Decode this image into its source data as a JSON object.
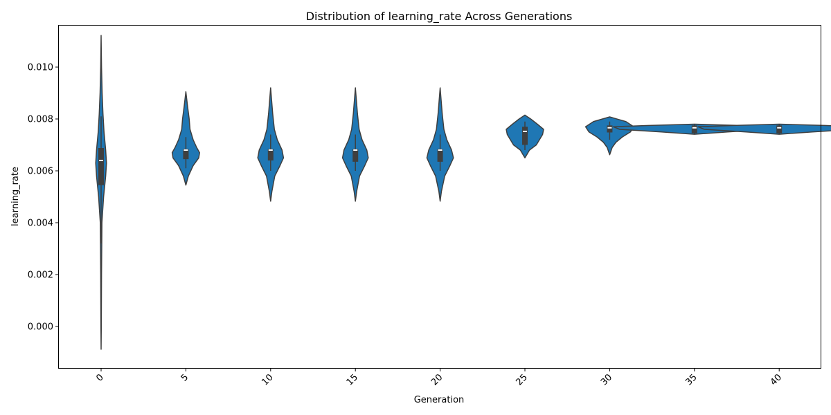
{
  "chart_data": {
    "type": "violin",
    "title": "Distribution of learning_rate Across Generations",
    "xlabel": "Generation",
    "ylabel": "learning_rate",
    "ylim": [
      -0.0016,
      0.0116
    ],
    "yticks": [
      "0.000",
      "0.002",
      "0.004",
      "0.006",
      "0.008",
      "0.010"
    ],
    "ytick_values": [
      0.0,
      0.002,
      0.004,
      0.006,
      0.008,
      0.01
    ],
    "grid": false,
    "colors": {
      "violin_fill": "#1f77b4",
      "violin_edge": "#3f3f3f",
      "box": "#3f3f3f",
      "median": "#ffffff"
    },
    "categories": [
      "0",
      "5",
      "10",
      "15",
      "20",
      "25",
      "30",
      "35",
      "40"
    ],
    "violins": [
      {
        "generation": "0",
        "min": -0.00088,
        "max": 0.01122,
        "q1": 0.00545,
        "median": 0.0064,
        "q3": 0.00688,
        "whisker_low": 0.0032,
        "whisker_high": 0.0081,
        "profile": [
          [
            -0.00088,
            0.0
          ],
          [
            0.0,
            0.01
          ],
          [
            0.002,
            0.02
          ],
          [
            0.004,
            0.04
          ],
          [
            0.005,
            0.12
          ],
          [
            0.0058,
            0.22
          ],
          [
            0.0063,
            0.26
          ],
          [
            0.0068,
            0.22
          ],
          [
            0.0075,
            0.14
          ],
          [
            0.0082,
            0.09
          ],
          [
            0.009,
            0.05
          ],
          [
            0.01,
            0.02
          ],
          [
            0.01122,
            0.0
          ]
        ]
      },
      {
        "generation": "5",
        "min": 0.00545,
        "max": 0.00905,
        "q1": 0.00645,
        "median": 0.0068,
        "q3": 0.00684,
        "whisker_low": 0.0061,
        "whisker_high": 0.0073,
        "profile": [
          [
            0.00545,
            0.0
          ],
          [
            0.0058,
            0.12
          ],
          [
            0.0062,
            0.35
          ],
          [
            0.0065,
            0.62
          ],
          [
            0.0067,
            0.66
          ],
          [
            0.0069,
            0.52
          ],
          [
            0.0072,
            0.35
          ],
          [
            0.0076,
            0.2
          ],
          [
            0.008,
            0.16
          ],
          [
            0.0085,
            0.08
          ],
          [
            0.00905,
            0.0
          ]
        ]
      },
      {
        "generation": "10",
        "min": 0.00483,
        "max": 0.0092,
        "q1": 0.0064,
        "median": 0.0068,
        "q3": 0.00684,
        "whisker_low": 0.006,
        "whisker_high": 0.0074,
        "profile": [
          [
            0.00483,
            0.0
          ],
          [
            0.0052,
            0.06
          ],
          [
            0.0058,
            0.2
          ],
          [
            0.0062,
            0.45
          ],
          [
            0.0065,
            0.62
          ],
          [
            0.0068,
            0.55
          ],
          [
            0.0072,
            0.32
          ],
          [
            0.0076,
            0.18
          ],
          [
            0.0082,
            0.1
          ],
          [
            0.0087,
            0.05
          ],
          [
            0.0092,
            0.0
          ]
        ]
      },
      {
        "generation": "15",
        "min": 0.00483,
        "max": 0.0092,
        "q1": 0.00635,
        "median": 0.0068,
        "q3": 0.00684,
        "whisker_low": 0.006,
        "whisker_high": 0.0074,
        "profile": [
          [
            0.00483,
            0.0
          ],
          [
            0.0052,
            0.06
          ],
          [
            0.0058,
            0.2
          ],
          [
            0.0062,
            0.45
          ],
          [
            0.0065,
            0.62
          ],
          [
            0.0068,
            0.55
          ],
          [
            0.0072,
            0.32
          ],
          [
            0.0076,
            0.18
          ],
          [
            0.0082,
            0.1
          ],
          [
            0.0087,
            0.05
          ],
          [
            0.0092,
            0.0
          ]
        ]
      },
      {
        "generation": "20",
        "min": 0.00483,
        "max": 0.0092,
        "q1": 0.00635,
        "median": 0.0068,
        "q3": 0.00684,
        "whisker_low": 0.006,
        "whisker_high": 0.0074,
        "profile": [
          [
            0.00483,
            0.0
          ],
          [
            0.0052,
            0.06
          ],
          [
            0.0058,
            0.22
          ],
          [
            0.0062,
            0.47
          ],
          [
            0.0065,
            0.64
          ],
          [
            0.0068,
            0.55
          ],
          [
            0.0072,
            0.32
          ],
          [
            0.0076,
            0.18
          ],
          [
            0.0082,
            0.1
          ],
          [
            0.0087,
            0.05
          ],
          [
            0.0092,
            0.0
          ]
        ]
      },
      {
        "generation": "25",
        "min": 0.0065,
        "max": 0.00815,
        "q1": 0.007,
        "median": 0.00752,
        "q3": 0.0077,
        "whisker_low": 0.0068,
        "whisker_high": 0.0079,
        "profile": [
          [
            0.0065,
            0.0
          ],
          [
            0.0068,
            0.22
          ],
          [
            0.007,
            0.55
          ],
          [
            0.0072,
            0.7
          ],
          [
            0.0074,
            0.85
          ],
          [
            0.0076,
            0.9
          ],
          [
            0.0078,
            0.6
          ],
          [
            0.008,
            0.28
          ],
          [
            0.00815,
            0.0
          ]
        ]
      },
      {
        "generation": "30",
        "min": 0.00662,
        "max": 0.00808,
        "q1": 0.00748,
        "median": 0.00766,
        "q3": 0.00775,
        "whisker_low": 0.0072,
        "whisker_high": 0.0079,
        "profile": [
          [
            0.00662,
            0.0
          ],
          [
            0.0069,
            0.12
          ],
          [
            0.0071,
            0.3
          ],
          [
            0.0073,
            0.6
          ],
          [
            0.0075,
            1.0
          ],
          [
            0.0077,
            1.16
          ],
          [
            0.0079,
            0.78
          ],
          [
            0.00808,
            0.0
          ]
        ]
      },
      {
        "generation": "35",
        "min": 0.00741,
        "max": 0.0078,
        "q1": 0.00745,
        "median": 0.00766,
        "q3": 0.00775,
        "whisker_low": 0.00742,
        "whisker_high": 0.00779,
        "profile": [
          [
            0.00741,
            0.0
          ],
          [
            0.0075,
            1.6
          ],
          [
            0.0076,
            3.6
          ],
          [
            0.0077,
            3.9
          ],
          [
            0.00775,
            2.2
          ],
          [
            0.0078,
            0.0
          ]
        ]
      },
      {
        "generation": "40",
        "min": 0.00741,
        "max": 0.0078,
        "q1": 0.00745,
        "median": 0.00766,
        "q3": 0.00775,
        "whisker_low": 0.00742,
        "whisker_high": 0.00779,
        "profile": [
          [
            0.00741,
            0.0
          ],
          [
            0.0075,
            1.6
          ],
          [
            0.0076,
            3.6
          ],
          [
            0.0077,
            3.9
          ],
          [
            0.00775,
            2.2
          ],
          [
            0.0078,
            0.0
          ]
        ]
      }
    ]
  }
}
